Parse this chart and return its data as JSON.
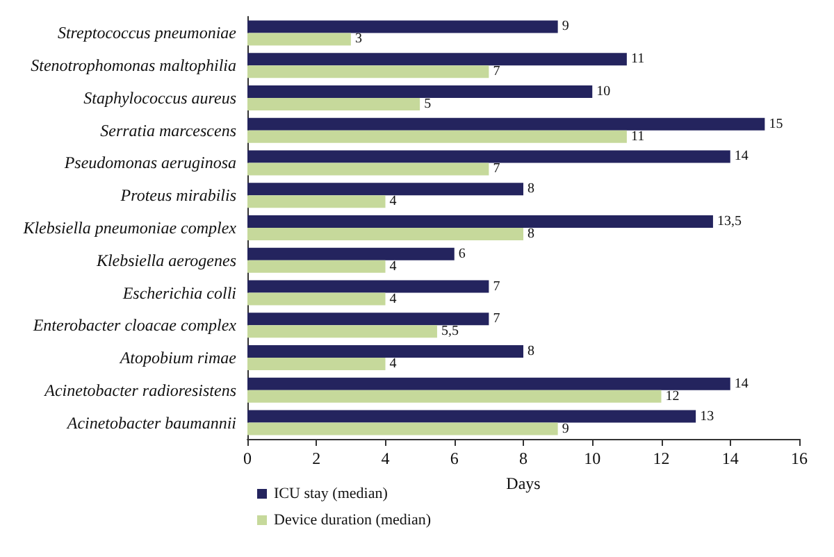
{
  "chart_data": {
    "type": "bar",
    "orientation": "horizontal",
    "xlabel": "Days",
    "categories": [
      "Streptococcus pneumoniae",
      "Stenotrophomonas maltophilia",
      "Staphylococcus aureus",
      "Serratia marcescens",
      "Pseudomonas aeruginosa",
      "Proteus mirabilis",
      "Klebsiella pneumoniae complex",
      "Klebsiella aerogenes",
      "Escherichia colli",
      "Enterobacter cloacae complex",
      "Atopobium rimae",
      "Acinetobacter radioresistens",
      "Acinetobacter baumannii"
    ],
    "series": [
      {
        "name": "ICU stay (median)",
        "color": "#24245e",
        "values": [
          9,
          11,
          10,
          15,
          14,
          8,
          13.5,
          6,
          7,
          7,
          8,
          14,
          13
        ],
        "value_labels": [
          "9",
          "11",
          "10",
          "15",
          "14",
          "8",
          "13,5",
          "6",
          "7",
          "7",
          "8",
          "14",
          "13"
        ]
      },
      {
        "name": "Device duration (median)",
        "color": "#c6d99b",
        "values": [
          3,
          7,
          5,
          11,
          7,
          4,
          8,
          4,
          4,
          5.5,
          4,
          12,
          9
        ],
        "value_labels": [
          "3",
          "7",
          "5",
          "11",
          "7",
          "4",
          "8",
          "4",
          "4",
          "5,5",
          "4",
          "12",
          "9"
        ]
      }
    ],
    "xlim": [
      0,
      16
    ],
    "xticks": [
      0,
      2,
      4,
      6,
      8,
      10,
      12,
      14,
      16
    ],
    "grid": false,
    "legend": "bottom left"
  }
}
